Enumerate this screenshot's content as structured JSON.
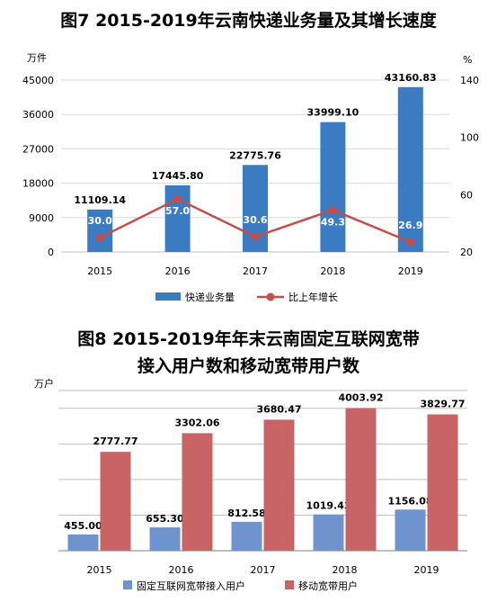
{
  "chart_data": [
    {
      "type": "bar",
      "title": "图7 2015-2019年云南快递业务量及其增长速度",
      "ylabel_left": "万件",
      "ylabel_right": "%",
      "categories": [
        "2015",
        "2016",
        "2017",
        "2018",
        "2019"
      ],
      "ylim_left": [
        0,
        45000
      ],
      "yticks_left": [
        "0",
        "9000",
        "18000",
        "27000",
        "36000",
        "45000"
      ],
      "ylim_right": [
        20,
        140
      ],
      "yticks_right": [
        "20",
        "60",
        "100",
        "140"
      ],
      "series": [
        {
          "name": "快递业务量",
          "type": "bar",
          "color": "#3b7bc2",
          "values": [
            11109.14,
            17445.8,
            22775.76,
            33999.1,
            43160.83
          ],
          "labels": [
            "11109.14",
            "17445.80",
            "22775.76",
            "33999.10",
            "43160.83"
          ]
        },
        {
          "name": "比上年增长",
          "type": "line",
          "axis": "right",
          "color": "#c0504d",
          "values": [
            30.0,
            57.0,
            30.6,
            49.3,
            26.9
          ],
          "labels": [
            "30.0",
            "57.0",
            "30.6",
            "49.3",
            "26.9"
          ]
        }
      ],
      "legend": "bottom",
      "grid": true
    },
    {
      "type": "bar",
      "title_line1": "图8 2015-2019年年末云南固定互联网宽带",
      "title_line2": "接入用户数和移动宽带用户数",
      "ylabel": "万户",
      "categories": [
        "2015",
        "2016",
        "2017",
        "2018",
        "2019"
      ],
      "ylim": [
        0,
        4500
      ],
      "series": [
        {
          "name": "固定互联网宽带接入用户",
          "color": "#6f93cf",
          "values": [
            455.0,
            655.3,
            812.58,
            1019.43,
            1156.08
          ],
          "labels": [
            "455.00",
            "655.30",
            "812.58",
            "1019.43",
            "1156.08"
          ]
        },
        {
          "name": "移动宽带用户",
          "color": "#c86465",
          "values": [
            2777.77,
            3302.06,
            3680.47,
            4003.92,
            3829.77
          ],
          "labels": [
            "2777.77",
            "3302.06",
            "3680.47",
            "4003.92",
            "3829.77"
          ]
        }
      ],
      "legend": "bottom",
      "grid": true
    }
  ]
}
